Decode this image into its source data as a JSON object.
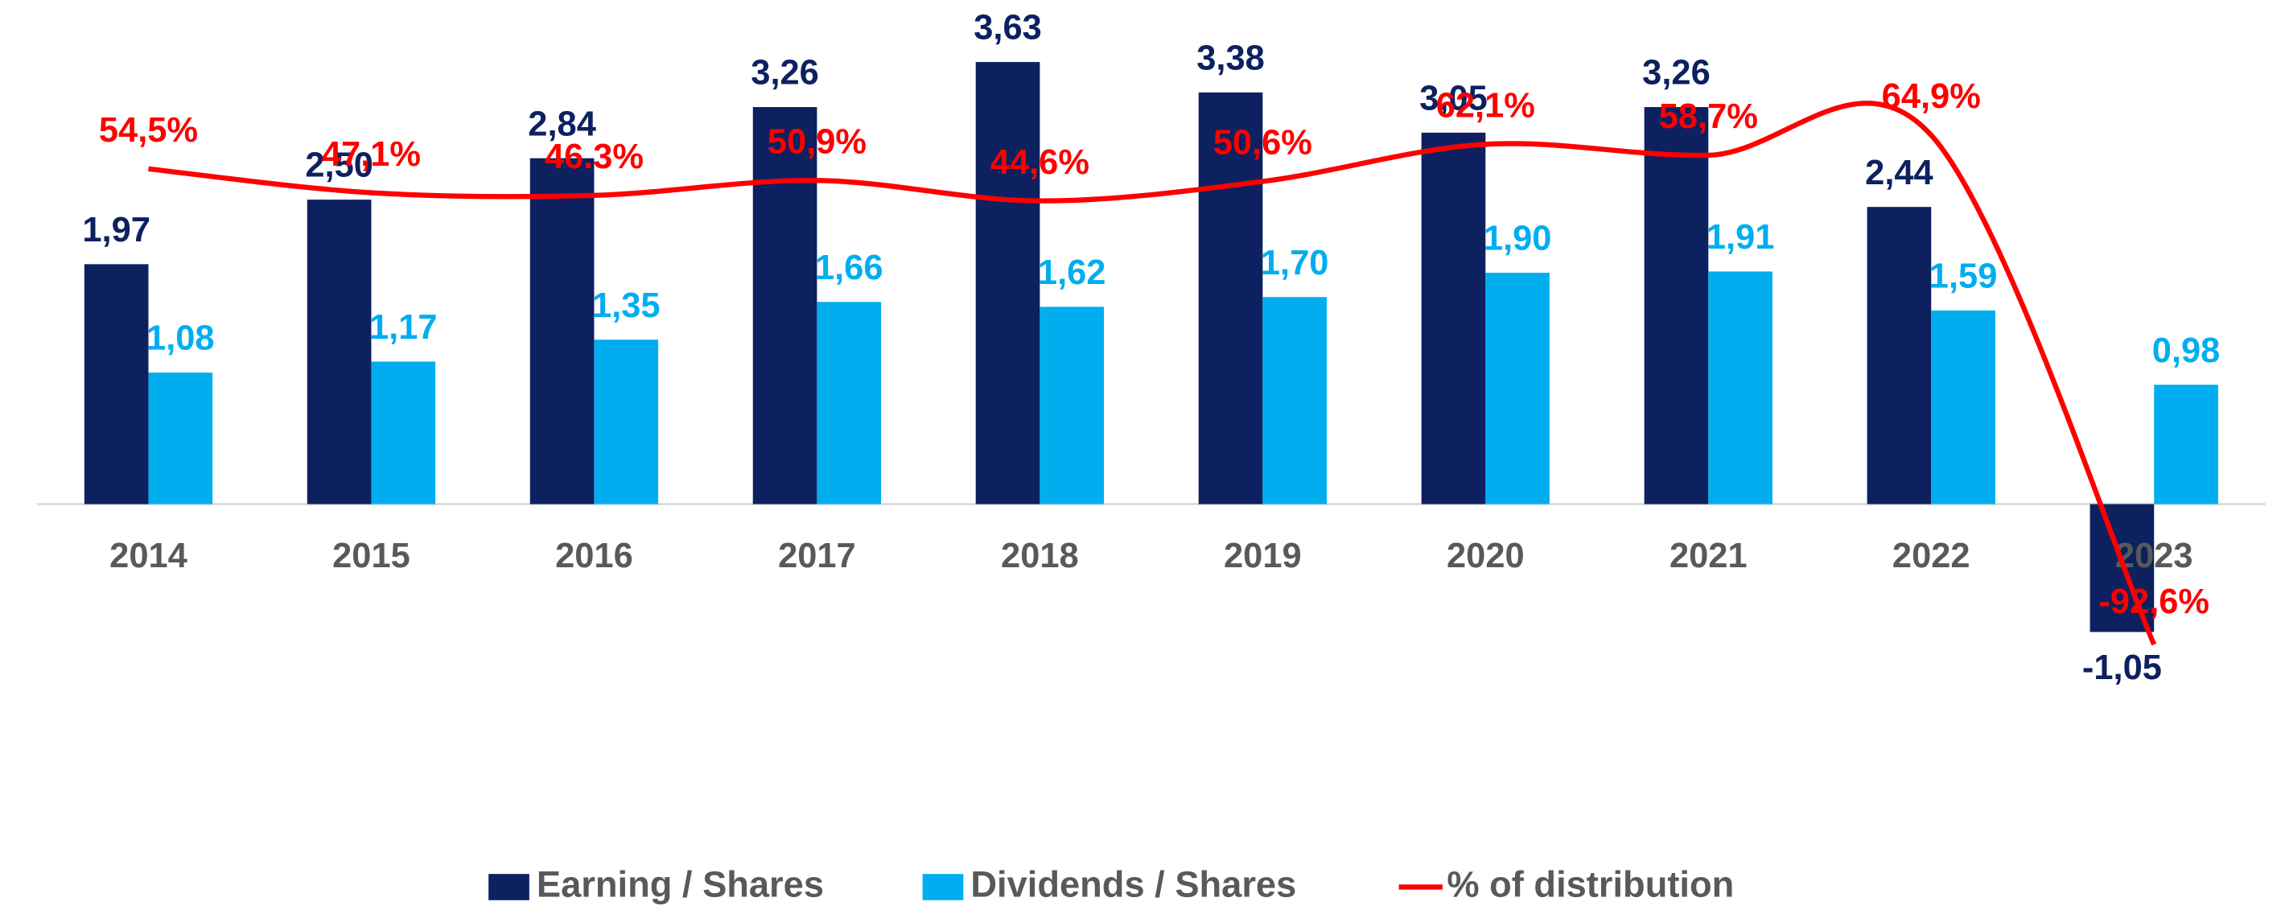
{
  "chart_data": {
    "type": "bar",
    "categories": [
      "2014",
      "2015",
      "2016",
      "2017",
      "2018",
      "2019",
      "2020",
      "2021",
      "2022",
      "2023"
    ],
    "series": [
      {
        "name": "Earning / Shares",
        "color": "#0d2160",
        "values": [
          1.97,
          2.5,
          2.84,
          3.26,
          3.63,
          3.38,
          3.05,
          3.26,
          2.44,
          -1.05
        ],
        "value_labels": [
          "1,97",
          "2,50",
          "2,84",
          "3,26",
          "3,63",
          "3,38",
          "3,05",
          "3,26",
          "2,44",
          "-1,05"
        ]
      },
      {
        "name": "Dividends / Shares",
        "color": "#00aeef",
        "values": [
          1.08,
          1.17,
          1.35,
          1.66,
          1.62,
          1.7,
          1.9,
          1.91,
          1.59,
          0.98
        ],
        "value_labels": [
          "1,08",
          "1,17",
          "1,35",
          "1,66",
          "1,62",
          "1,70",
          "1,90",
          "1,91",
          "1,59",
          "0,98"
        ]
      },
      {
        "name": "% of distribution",
        "type": "line",
        "axis": "y2",
        "color": "#ff0000",
        "values": [
          54.5,
          47.1,
          46.3,
          50.9,
          44.6,
          50.6,
          62.1,
          58.7,
          64.9,
          -92.6
        ],
        "value_labels": [
          "54,5%",
          "47,1%",
          "46.3%",
          "50,9%",
          "44,6%",
          "50,6%",
          "62,1%",
          "58,7%",
          "64,9%",
          "-92,6%"
        ]
      }
    ],
    "ylim": [
      -2.08,
      3.9
    ],
    "y2lim": [
      -127.5,
      97.7
    ],
    "legend": "bottom"
  }
}
